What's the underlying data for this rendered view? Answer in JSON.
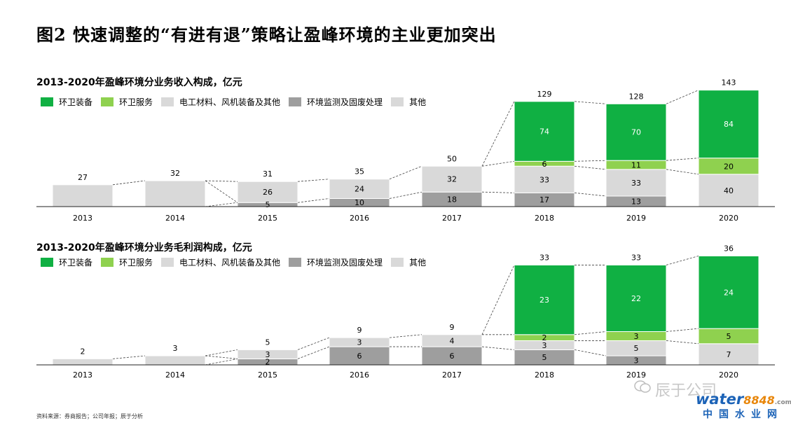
{
  "figure_title": "图2 快速调整的“有进有退”策略让盈峰环境的主业更加突出",
  "colors": {
    "环卫装备": "#10b043",
    "环卫服务": "#8fd14f",
    "电工材料、风机装备及其他": "#d9d9d9",
    "环境监测及固废处理": "#9e9e9e",
    "其他": "#d9d9d9"
  },
  "chart_data": [
    {
      "type": "bar",
      "stacked": true,
      "title": "2013-2020年盈峰环境分业务收入构成，亿元",
      "legend": [
        "环卫装备",
        "环卫服务",
        "电工材料、风机装备及其他",
        "环境监测及固废处理",
        "其他"
      ],
      "legend_placement": "top-left",
      "categories": [
        "2013",
        "2014",
        "2015",
        "2016",
        "2017",
        "2018",
        "2019",
        "2020"
      ],
      "series": [
        {
          "name": "环境监测及固废处理",
          "values": [
            null,
            null,
            5,
            10,
            18,
            17,
            13,
            null
          ]
        },
        {
          "name": "电工材料、风机装备及其他",
          "values": [
            27,
            32,
            26,
            24,
            32,
            33,
            33,
            40
          ]
        },
        {
          "name": "环卫服务",
          "values": [
            null,
            null,
            null,
            null,
            null,
            6,
            11,
            20
          ]
        },
        {
          "name": "环卫装备",
          "values": [
            null,
            null,
            null,
            null,
            null,
            74,
            70,
            84
          ]
        }
      ],
      "totals": [
        27,
        32,
        31,
        35,
        50,
        129,
        128,
        143
      ],
      "total_labels": [
        "27",
        "32",
        "31",
        "35",
        "50",
        "129",
        "128",
        "143"
      ],
      "grid": false
    },
    {
      "type": "bar",
      "stacked": true,
      "title": "2013-2020年盈峰环境分业务毛利润构成，亿元",
      "legend": [
        "环卫装备",
        "环卫服务",
        "电工材料、风机装备及其他",
        "环境监测及固废处理",
        "其他"
      ],
      "legend_placement": "top-left",
      "categories": [
        "2013",
        "2014",
        "2015",
        "2016",
        "2017",
        "2018",
        "2019",
        "2020"
      ],
      "series": [
        {
          "name": "环境监测及固废处理",
          "values": [
            null,
            null,
            2,
            6,
            6,
            5,
            3,
            null
          ]
        },
        {
          "name": "电工材料、风机装备及其他",
          "values": [
            2,
            3,
            3,
            3,
            4,
            3,
            5,
            7
          ]
        },
        {
          "name": "环卫服务",
          "values": [
            null,
            null,
            null,
            null,
            null,
            2,
            3,
            5
          ]
        },
        {
          "name": "环卫装备",
          "values": [
            null,
            null,
            null,
            null,
            null,
            23,
            22,
            24
          ]
        }
      ],
      "totals": [
        2,
        3,
        5,
        9,
        9,
        33,
        33,
        36
      ],
      "total_labels": [
        "2",
        "3",
        "5",
        "9",
        "9",
        "33",
        "33",
        "36"
      ],
      "grid": false
    }
  ],
  "source": "资料来源：券商报告；公司年报；辰于分析",
  "watermark": {
    "social": "辰于公司",
    "brand_main": "water",
    "brand_num": "8848",
    "brand_tld": ".com",
    "brand_cn": "中国水业网"
  }
}
